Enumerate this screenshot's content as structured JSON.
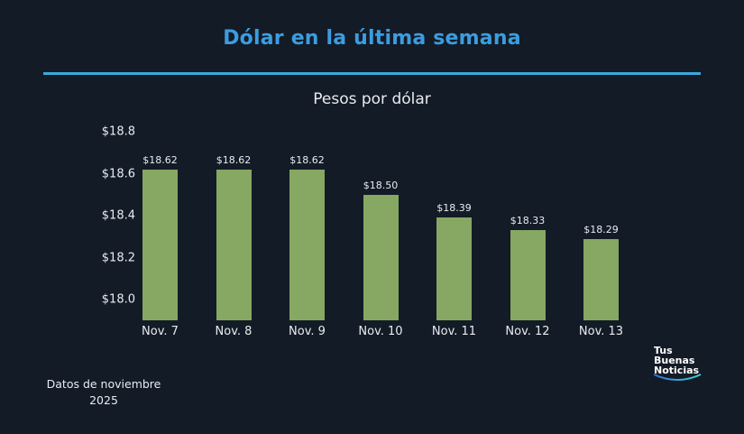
{
  "header": {
    "title": "Dólar en la última semana",
    "subtitle": "Pesos por dólar"
  },
  "footer": {
    "note_line1": "Datos de noviembre",
    "note_line2": "2025"
  },
  "logo": {
    "line1": "Tus",
    "line2": "Buenas",
    "line3": "Noticias"
  },
  "colors": {
    "background": "#131b27",
    "title": "#3b9de0",
    "rule": "#3aa9dc",
    "bar": "#86a862",
    "text": "#e8ecf0"
  },
  "chart_data": {
    "type": "bar",
    "title": "Dólar en la última semana",
    "subtitle": "Pesos por dólar",
    "xlabel": "",
    "ylabel": "",
    "categories": [
      "Nov. 7",
      "Nov. 8",
      "Nov. 9",
      "Nov. 10",
      "Nov. 11",
      "Nov. 12",
      "Nov. 13"
    ],
    "values": [
      18.62,
      18.62,
      18.62,
      18.5,
      18.39,
      18.33,
      18.29
    ],
    "value_labels": [
      "$18.62",
      "$18.62",
      "$18.62",
      "$18.50",
      "$18.39",
      "$18.33",
      "$18.29"
    ],
    "yticks": [
      "$18.0",
      "$18.2",
      "$18.4",
      "$18.6",
      "$18.8"
    ],
    "ytick_values": [
      18.0,
      18.2,
      18.4,
      18.6,
      18.8
    ],
    "ylim": [
      17.9,
      18.8
    ],
    "grid": false,
    "legend": null,
    "annotation": "Datos de noviembre 2025"
  }
}
